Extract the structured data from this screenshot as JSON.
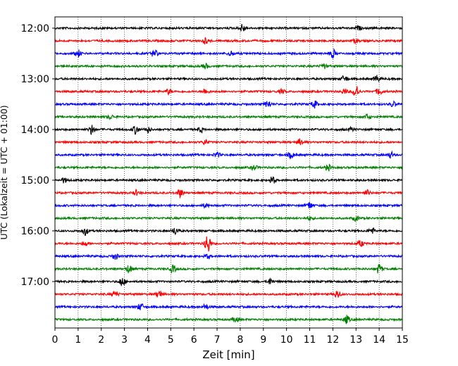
{
  "chart_data": {
    "type": "line",
    "title": "",
    "xlabel": "Zeit  [min]",
    "ylabel": "UTC (Lokalzeit = UTC + 01:00)",
    "xlim": [
      0,
      15
    ],
    "x_ticks": [
      "0",
      "1",
      "2",
      "3",
      "4",
      "5",
      "6",
      "7",
      "8",
      "9",
      "10",
      "11",
      "12",
      "13",
      "14",
      "15"
    ],
    "y_tick_labels": [
      "12:00",
      "13:00",
      "14:00",
      "15:00",
      "16:00",
      "17:00"
    ],
    "grid": {
      "x": true,
      "y": false,
      "style": "dotted"
    },
    "trace_interval_minutes": 15,
    "start_time": "12:00",
    "trace_colors": [
      "#000000",
      "#ff0000",
      "#0000ff",
      "#008000"
    ],
    "traces": [
      {
        "start": "12:00",
        "color": "#000000",
        "events": [
          [
            8.1,
            0.8
          ],
          [
            13.1,
            0.35
          ]
        ]
      },
      {
        "start": "12:15",
        "color": "#ff0000",
        "events": [
          [
            6.5,
            0.6
          ],
          [
            13.0,
            0.35
          ]
        ]
      },
      {
        "start": "12:30",
        "color": "#0000ff",
        "events": [
          [
            1.0,
            0.7
          ],
          [
            4.3,
            0.8
          ],
          [
            7.6,
            0.5
          ],
          [
            12.0,
            0.8
          ]
        ]
      },
      {
        "start": "12:45",
        "color": "#008000",
        "events": [
          [
            6.5,
            0.5
          ],
          [
            11.6,
            0.5
          ]
        ]
      },
      {
        "start": "13:00",
        "color": "#000000",
        "events": [
          [
            12.5,
            0.6
          ],
          [
            13.9,
            0.6
          ]
        ]
      },
      {
        "start": "13:15",
        "color": "#ff0000",
        "events": [
          [
            4.9,
            0.5
          ],
          [
            6.5,
            0.6
          ],
          [
            9.8,
            0.4
          ],
          [
            12.5,
            0.5
          ],
          [
            13.0,
            1.3
          ],
          [
            14.0,
            0.7
          ]
        ]
      },
      {
        "start": "13:30",
        "color": "#0000ff",
        "events": [
          [
            9.2,
            0.7
          ],
          [
            11.2,
            0.7
          ],
          [
            14.6,
            0.5
          ]
        ]
      },
      {
        "start": "13:45",
        "color": "#008000",
        "events": [
          [
            2.4,
            0.4
          ],
          [
            13.5,
            0.5
          ]
        ]
      },
      {
        "start": "14:00",
        "color": "#000000",
        "events": [
          [
            1.6,
            1.0
          ],
          [
            3.5,
            0.9
          ],
          [
            4.0,
            0.6
          ],
          [
            6.3,
            0.5
          ],
          [
            12.8,
            0.3
          ]
        ]
      },
      {
        "start": "14:15",
        "color": "#ff0000",
        "events": [
          [
            6.5,
            0.5
          ],
          [
            10.6,
            0.7
          ]
        ]
      },
      {
        "start": "14:30",
        "color": "#0000ff",
        "events": [
          [
            7.0,
            0.5
          ],
          [
            10.2,
            0.6
          ],
          [
            14.5,
            0.6
          ]
        ]
      },
      {
        "start": "14:45",
        "color": "#008000",
        "events": [
          [
            8.6,
            0.5
          ],
          [
            11.8,
            0.6
          ]
        ]
      },
      {
        "start": "15:00",
        "color": "#000000",
        "events": [
          [
            0.4,
            0.5
          ],
          [
            9.4,
            0.7
          ]
        ]
      },
      {
        "start": "15:15",
        "color": "#ff0000",
        "events": [
          [
            3.5,
            0.5
          ],
          [
            5.4,
            0.8
          ],
          [
            13.5,
            0.5
          ]
        ]
      },
      {
        "start": "15:30",
        "color": "#0000ff",
        "events": [
          [
            6.5,
            0.4
          ],
          [
            11.0,
            0.7
          ]
        ]
      },
      {
        "start": "15:45",
        "color": "#008000",
        "events": [
          [
            11.0,
            0.4
          ],
          [
            13.0,
            0.5
          ]
        ]
      },
      {
        "start": "16:00",
        "color": "#000000",
        "events": [
          [
            1.3,
            0.8
          ],
          [
            5.2,
            0.7
          ],
          [
            13.7,
            0.6
          ]
        ]
      },
      {
        "start": "16:15",
        "color": "#ff0000",
        "events": [
          [
            1.3,
            0.5
          ],
          [
            6.6,
            2.0
          ],
          [
            13.2,
            0.6
          ]
        ]
      },
      {
        "start": "16:30",
        "color": "#0000ff",
        "events": [
          [
            2.6,
            0.6
          ],
          [
            6.6,
            0.4
          ]
        ]
      },
      {
        "start": "16:45",
        "color": "#008000",
        "events": [
          [
            3.2,
            0.8
          ],
          [
            5.1,
            0.7
          ],
          [
            14.0,
            1.0
          ]
        ]
      },
      {
        "start": "17:00",
        "color": "#000000",
        "events": [
          [
            2.9,
            0.9
          ],
          [
            9.3,
            0.6
          ]
        ]
      },
      {
        "start": "17:15",
        "color": "#ff0000",
        "events": [
          [
            2.6,
            0.6
          ],
          [
            4.5,
            0.8
          ],
          [
            12.2,
            0.8
          ]
        ]
      },
      {
        "start": "17:30",
        "color": "#0000ff",
        "events": [
          [
            3.7,
            0.7
          ],
          [
            6.5,
            0.5
          ]
        ]
      },
      {
        "start": "17:45",
        "color": "#008000",
        "events": [
          [
            7.8,
            0.5
          ],
          [
            12.6,
            0.8
          ]
        ]
      }
    ]
  }
}
